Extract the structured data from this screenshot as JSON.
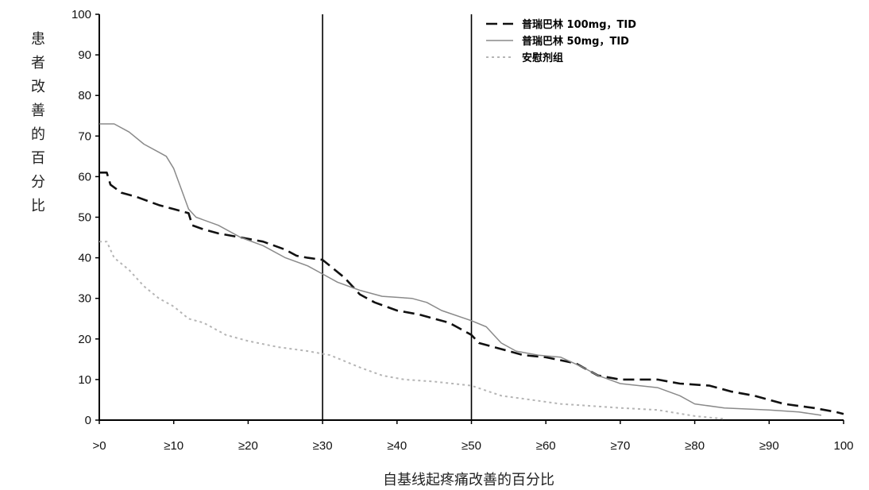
{
  "chart_data": {
    "type": "line",
    "ylabel": "患者改善的百分比",
    "xlabel": "自基线起疼痛改善的百分比",
    "xlim": [
      0,
      100
    ],
    "ylim": [
      0,
      100
    ],
    "y_ticks": [
      "0",
      "10",
      "20",
      "30",
      "40",
      "50",
      "60",
      "70",
      "80",
      "90",
      "100"
    ],
    "x_ticks": [
      ">0",
      "≥10",
      "≥20",
      "≥30",
      "≥40",
      "≥50",
      "≥60",
      "≥70",
      "≥80",
      "≥90",
      "100"
    ],
    "reference_lines_x": [
      30,
      50
    ],
    "legend_position": "top-right",
    "series": [
      {
        "name": "普瑞巴林 100mg，TID",
        "style": "dashed-dark",
        "color": "#111111",
        "points": [
          [
            0,
            61
          ],
          [
            1,
            61
          ],
          [
            1.5,
            58
          ],
          [
            3,
            56
          ],
          [
            5,
            55
          ],
          [
            8,
            53
          ],
          [
            10,
            52
          ],
          [
            12,
            51
          ],
          [
            12.5,
            48
          ],
          [
            14,
            47
          ],
          [
            16,
            46
          ],
          [
            19,
            45
          ],
          [
            22,
            44
          ],
          [
            25,
            42
          ],
          [
            26.5,
            40.5
          ],
          [
            28,
            40
          ],
          [
            30,
            39.5
          ],
          [
            31,
            38
          ],
          [
            33,
            35
          ],
          [
            35,
            31
          ],
          [
            37,
            29
          ],
          [
            40,
            27
          ],
          [
            43,
            26
          ],
          [
            45,
            25
          ],
          [
            47,
            24
          ],
          [
            48,
            23
          ],
          [
            50,
            21
          ],
          [
            51,
            19
          ],
          [
            53,
            18
          ],
          [
            55,
            17
          ],
          [
            57,
            16
          ],
          [
            60,
            15.5
          ],
          [
            64,
            14
          ],
          [
            67,
            11
          ],
          [
            70,
            10
          ],
          [
            75,
            10
          ],
          [
            78,
            9
          ],
          [
            82,
            8.5
          ],
          [
            85,
            7
          ],
          [
            88,
            6
          ],
          [
            92,
            4
          ],
          [
            96,
            3
          ],
          [
            99,
            2
          ],
          [
            100,
            1.5
          ]
        ]
      },
      {
        "name": "普瑞巴林 50mg，TID",
        "style": "solid-gray",
        "color": "#8a8a8a",
        "points": [
          [
            0,
            73
          ],
          [
            2,
            73
          ],
          [
            4,
            71
          ],
          [
            6,
            68
          ],
          [
            8,
            66
          ],
          [
            9,
            65
          ],
          [
            10,
            62
          ],
          [
            11,
            57
          ],
          [
            12,
            52
          ],
          [
            13,
            50
          ],
          [
            16,
            48
          ],
          [
            19,
            45
          ],
          [
            22,
            43
          ],
          [
            25,
            40
          ],
          [
            28,
            38
          ],
          [
            30,
            36
          ],
          [
            32,
            34
          ],
          [
            35,
            32
          ],
          [
            38,
            30.5
          ],
          [
            42,
            30
          ],
          [
            44,
            29
          ],
          [
            46,
            27
          ],
          [
            50,
            24.5
          ],
          [
            52,
            23
          ],
          [
            53,
            21
          ],
          [
            54,
            19
          ],
          [
            56,
            17
          ],
          [
            59,
            16
          ],
          [
            62,
            15.5
          ],
          [
            65,
            13
          ],
          [
            67,
            11
          ],
          [
            70,
            9
          ],
          [
            75,
            8
          ],
          [
            78,
            6
          ],
          [
            80,
            4
          ],
          [
            84,
            3
          ],
          [
            90,
            2.5
          ],
          [
            94,
            2
          ],
          [
            97,
            1.2
          ]
        ]
      },
      {
        "name": "安慰剂组",
        "style": "dotted-lightgray",
        "color": "#b5b5b5",
        "points": [
          [
            0,
            44
          ],
          [
            1,
            44
          ],
          [
            2,
            40
          ],
          [
            4,
            37
          ],
          [
            6,
            33
          ],
          [
            8,
            30
          ],
          [
            10,
            28
          ],
          [
            12,
            25
          ],
          [
            14,
            24
          ],
          [
            17,
            21
          ],
          [
            20,
            19.5
          ],
          [
            24,
            18
          ],
          [
            28,
            17
          ],
          [
            31,
            16
          ],
          [
            35,
            13
          ],
          [
            38,
            11
          ],
          [
            41,
            10
          ],
          [
            45,
            9.5
          ],
          [
            50,
            8.5
          ],
          [
            54,
            6
          ],
          [
            58,
            5
          ],
          [
            62,
            4
          ],
          [
            66,
            3.5
          ],
          [
            70,
            3
          ],
          [
            75,
            2.5
          ],
          [
            80,
            1
          ],
          [
            84,
            0.3
          ]
        ]
      }
    ]
  }
}
